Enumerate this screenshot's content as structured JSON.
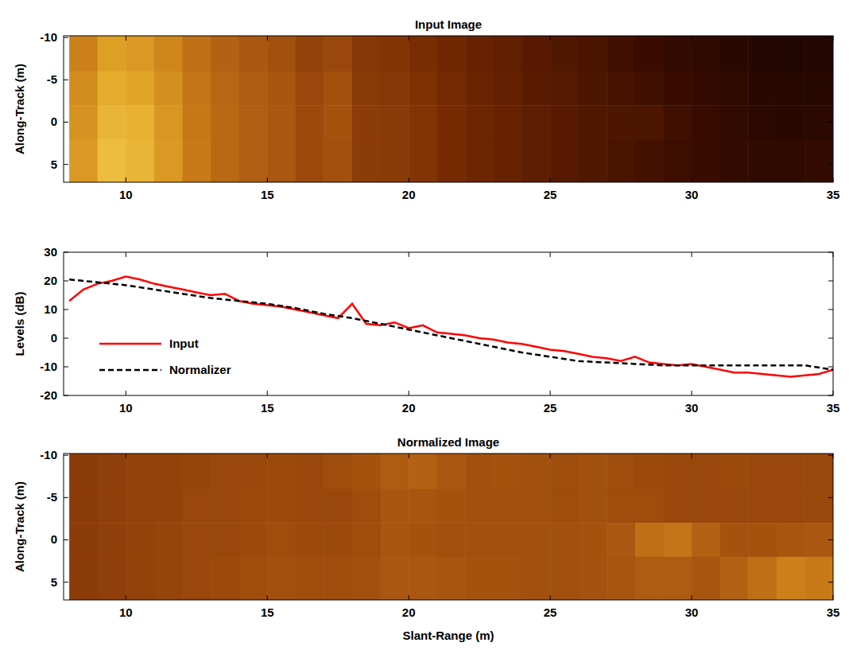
{
  "chart_data": [
    {
      "type": "heatmap",
      "title": "Input Image",
      "ylabel": "Along-Track (m)",
      "xlim": [
        7.8,
        35
      ],
      "ylim": [
        -10.2,
        7.1
      ],
      "xticks": [
        10,
        15,
        20,
        25,
        30,
        35
      ],
      "yticks": [
        -10,
        -5,
        0,
        5
      ],
      "zlim": [
        0,
        1
      ],
      "x_edges": [
        8,
        9,
        10,
        11,
        12,
        13,
        14,
        15,
        16,
        17,
        18,
        19,
        20,
        21,
        22,
        23,
        24,
        25,
        26,
        27,
        28,
        29,
        30,
        31,
        32,
        33,
        34,
        35
      ],
      "y_edges": [
        -10.2,
        -6,
        -2,
        2,
        7.1
      ],
      "cells": [
        [
          0.72,
          0.82,
          0.8,
          0.74,
          0.66,
          0.6,
          0.56,
          0.53,
          0.48,
          0.5,
          0.44,
          0.43,
          0.4,
          0.37,
          0.34,
          0.32,
          0.29,
          0.27,
          0.25,
          0.22,
          0.2,
          0.18,
          0.16,
          0.14,
          0.12,
          0.11,
          0.12
        ],
        [
          0.76,
          0.86,
          0.84,
          0.77,
          0.68,
          0.62,
          0.58,
          0.55,
          0.5,
          0.53,
          0.45,
          0.44,
          0.42,
          0.38,
          0.35,
          0.33,
          0.3,
          0.28,
          0.26,
          0.24,
          0.22,
          0.2,
          0.18,
          0.16,
          0.14,
          0.13,
          0.13
        ],
        [
          0.78,
          0.88,
          0.87,
          0.79,
          0.69,
          0.63,
          0.59,
          0.56,
          0.51,
          0.54,
          0.46,
          0.45,
          0.43,
          0.39,
          0.36,
          0.34,
          0.31,
          0.29,
          0.27,
          0.26,
          0.26,
          0.22,
          0.19,
          0.17,
          0.15,
          0.14,
          0.15
        ],
        [
          0.8,
          0.9,
          0.88,
          0.8,
          0.7,
          0.63,
          0.59,
          0.56,
          0.51,
          0.53,
          0.46,
          0.45,
          0.43,
          0.39,
          0.36,
          0.34,
          0.31,
          0.29,
          0.27,
          0.25,
          0.23,
          0.21,
          0.19,
          0.18,
          0.16,
          0.16,
          0.18
        ]
      ]
    },
    {
      "type": "line",
      "ylabel": "Levels (dB)",
      "xlim": [
        7.8,
        35
      ],
      "ylim": [
        -20,
        30
      ],
      "xticks": [
        10,
        15,
        20,
        25,
        30,
        35
      ],
      "yticks": [
        -20,
        -10,
        0,
        10,
        20,
        30
      ],
      "legend": "lower left",
      "series": [
        {
          "name": "Input",
          "color": "#ff0000",
          "line_style": "solid",
          "x": [
            8,
            8.5,
            9,
            9.5,
            10,
            10.5,
            11,
            11.5,
            12,
            12.5,
            13,
            13.5,
            14,
            14.5,
            15,
            15.5,
            16,
            16.5,
            17,
            17.5,
            18,
            18.5,
            19,
            19.5,
            20,
            20.5,
            21,
            21.5,
            22,
            22.5,
            23,
            23.5,
            24,
            24.5,
            25,
            25.5,
            26,
            26.5,
            27,
            27.5,
            28,
            28.5,
            29,
            29.5,
            30,
            30.5,
            31,
            31.5,
            32,
            32.5,
            33,
            33.5,
            34,
            34.5,
            35
          ],
          "values": [
            13,
            17,
            19,
            20,
            21.5,
            20.5,
            19,
            18,
            17,
            16,
            15,
            15.5,
            13,
            12,
            11.5,
            11,
            10,
            9,
            8,
            7,
            12,
            5,
            4.5,
            5.5,
            3.5,
            4.5,
            2,
            1.5,
            1,
            0,
            -0.5,
            -1.5,
            -2,
            -3,
            -4,
            -4.5,
            -5.5,
            -6.5,
            -7,
            -8,
            -6.5,
            -8.5,
            -9,
            -9.5,
            -9,
            -10,
            -11,
            -12,
            -12,
            -12.5,
            -13,
            -13.5,
            -13,
            -12.5,
            -11
          ]
        },
        {
          "name": "Normalizer",
          "color": "#000000",
          "line_style": "dashed",
          "x": [
            8,
            9,
            10,
            11,
            12,
            13,
            14,
            15,
            16,
            17,
            18,
            19,
            20,
            21,
            22,
            23,
            24,
            25,
            26,
            27,
            28,
            29,
            30,
            31,
            32,
            33,
            34,
            35
          ],
          "values": [
            20.5,
            19.5,
            18.5,
            17,
            15.5,
            14,
            13,
            12,
            10.5,
            8.5,
            7,
            5,
            3,
            1,
            -1,
            -3,
            -5,
            -6.5,
            -8,
            -8.5,
            -9,
            -9.5,
            -9.5,
            -9.5,
            -9.5,
            -9.5,
            -9.5,
            -11
          ]
        }
      ]
    },
    {
      "type": "heatmap",
      "title": "Normalized Image",
      "xlabel": "Slant-Range (m)",
      "ylabel": "Along-Track (m)",
      "xlim": [
        7.8,
        35
      ],
      "ylim": [
        -10.2,
        7.1
      ],
      "xticks": [
        10,
        15,
        20,
        25,
        30,
        35
      ],
      "yticks": [
        -10,
        -5,
        0,
        5
      ],
      "zlim": [
        0,
        1
      ],
      "x_edges": [
        8,
        9,
        10,
        11,
        12,
        13,
        14,
        15,
        16,
        17,
        18,
        19,
        20,
        21,
        22,
        23,
        24,
        25,
        26,
        27,
        28,
        29,
        30,
        31,
        32,
        33,
        34,
        35
      ],
      "y_edges": [
        -10.2,
        -6,
        -2,
        2,
        7.1
      ],
      "cells": [
        [
          0.46,
          0.47,
          0.48,
          0.48,
          0.49,
          0.5,
          0.5,
          0.51,
          0.5,
          0.52,
          0.54,
          0.58,
          0.6,
          0.56,
          0.53,
          0.54,
          0.53,
          0.52,
          0.53,
          0.52,
          0.51,
          0.5,
          0.5,
          0.51,
          0.5,
          0.5,
          0.5
        ],
        [
          0.46,
          0.47,
          0.48,
          0.48,
          0.5,
          0.5,
          0.51,
          0.51,
          0.5,
          0.5,
          0.52,
          0.55,
          0.55,
          0.54,
          0.53,
          0.53,
          0.53,
          0.52,
          0.53,
          0.52,
          0.52,
          0.5,
          0.5,
          0.5,
          0.5,
          0.5,
          0.5
        ],
        [
          0.46,
          0.47,
          0.48,
          0.49,
          0.5,
          0.5,
          0.51,
          0.52,
          0.51,
          0.51,
          0.52,
          0.55,
          0.54,
          0.53,
          0.53,
          0.53,
          0.53,
          0.53,
          0.54,
          0.56,
          0.66,
          0.68,
          0.6,
          0.54,
          0.54,
          0.55,
          0.56
        ],
        [
          0.46,
          0.47,
          0.48,
          0.49,
          0.5,
          0.51,
          0.52,
          0.53,
          0.52,
          0.52,
          0.53,
          0.56,
          0.56,
          0.55,
          0.54,
          0.54,
          0.53,
          0.53,
          0.54,
          0.55,
          0.58,
          0.58,
          0.55,
          0.6,
          0.66,
          0.72,
          0.7
        ]
      ]
    }
  ]
}
